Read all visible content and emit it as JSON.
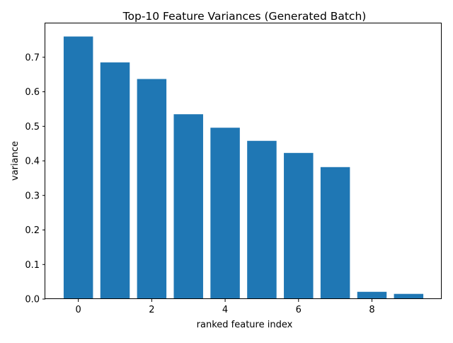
{
  "chart_data": {
    "type": "bar",
    "title": "Top-10 Feature Variances (Generated Batch)",
    "xlabel": "ranked feature index",
    "ylabel": "variance",
    "categories": [
      0,
      1,
      2,
      3,
      4,
      5,
      6,
      7,
      8,
      9
    ],
    "values": [
      0.76,
      0.685,
      0.637,
      0.535,
      0.496,
      0.458,
      0.423,
      0.382,
      0.021,
      0.015
    ],
    "xlim": [
      -0.9,
      9.9
    ],
    "ylim": [
      0,
      0.798
    ],
    "xticks": [
      0,
      2,
      4,
      6,
      8
    ],
    "yticks": [
      0.0,
      0.1,
      0.2,
      0.3,
      0.4,
      0.5,
      0.6,
      0.7
    ],
    "ytick_labels": [
      "0.0",
      "0.1",
      "0.2",
      "0.3",
      "0.4",
      "0.5",
      "0.6",
      "0.7"
    ],
    "bar_color": "#1f77b4",
    "grid": false,
    "legend": "none"
  }
}
